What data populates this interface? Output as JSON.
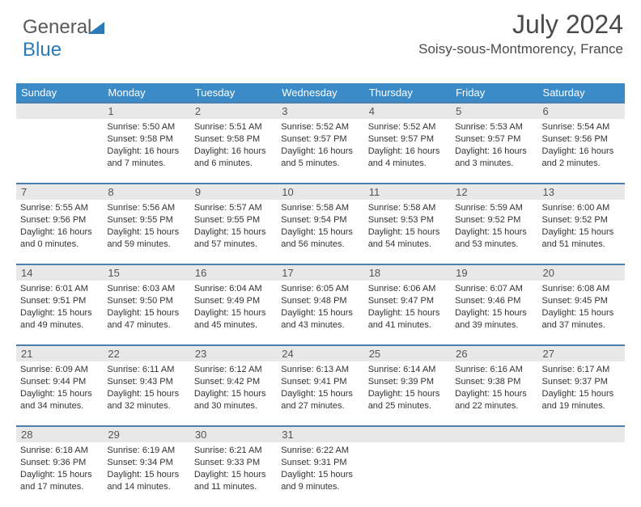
{
  "logo": {
    "word1": "General",
    "word2": "Blue"
  },
  "title": "July 2024",
  "location": "Soisy-sous-Montmorency, France",
  "colors": {
    "header_bg": "#3b8bc8",
    "header_text": "#ffffff",
    "daynum_bg": "#e8e8e8",
    "border": "#4a7fb0",
    "text": "#333333",
    "title_color": "#4a4a4a",
    "logo_gray": "#58595b",
    "logo_blue": "#2a7ab8"
  },
  "weekdays": [
    "Sunday",
    "Monday",
    "Tuesday",
    "Wednesday",
    "Thursday",
    "Friday",
    "Saturday"
  ],
  "weeks": [
    {
      "nums": [
        "",
        "1",
        "2",
        "3",
        "4",
        "5",
        "6"
      ],
      "cells": [
        null,
        {
          "sunrise": "Sunrise: 5:50 AM",
          "sunset": "Sunset: 9:58 PM",
          "daylight": "Daylight: 16 hours and 7 minutes."
        },
        {
          "sunrise": "Sunrise: 5:51 AM",
          "sunset": "Sunset: 9:58 PM",
          "daylight": "Daylight: 16 hours and 6 minutes."
        },
        {
          "sunrise": "Sunrise: 5:52 AM",
          "sunset": "Sunset: 9:57 PM",
          "daylight": "Daylight: 16 hours and 5 minutes."
        },
        {
          "sunrise": "Sunrise: 5:52 AM",
          "sunset": "Sunset: 9:57 PM",
          "daylight": "Daylight: 16 hours and 4 minutes."
        },
        {
          "sunrise": "Sunrise: 5:53 AM",
          "sunset": "Sunset: 9:57 PM",
          "daylight": "Daylight: 16 hours and 3 minutes."
        },
        {
          "sunrise": "Sunrise: 5:54 AM",
          "sunset": "Sunset: 9:56 PM",
          "daylight": "Daylight: 16 hours and 2 minutes."
        }
      ]
    },
    {
      "nums": [
        "7",
        "8",
        "9",
        "10",
        "11",
        "12",
        "13"
      ],
      "cells": [
        {
          "sunrise": "Sunrise: 5:55 AM",
          "sunset": "Sunset: 9:56 PM",
          "daylight": "Daylight: 16 hours and 0 minutes."
        },
        {
          "sunrise": "Sunrise: 5:56 AM",
          "sunset": "Sunset: 9:55 PM",
          "daylight": "Daylight: 15 hours and 59 minutes."
        },
        {
          "sunrise": "Sunrise: 5:57 AM",
          "sunset": "Sunset: 9:55 PM",
          "daylight": "Daylight: 15 hours and 57 minutes."
        },
        {
          "sunrise": "Sunrise: 5:58 AM",
          "sunset": "Sunset: 9:54 PM",
          "daylight": "Daylight: 15 hours and 56 minutes."
        },
        {
          "sunrise": "Sunrise: 5:58 AM",
          "sunset": "Sunset: 9:53 PM",
          "daylight": "Daylight: 15 hours and 54 minutes."
        },
        {
          "sunrise": "Sunrise: 5:59 AM",
          "sunset": "Sunset: 9:52 PM",
          "daylight": "Daylight: 15 hours and 53 minutes."
        },
        {
          "sunrise": "Sunrise: 6:00 AM",
          "sunset": "Sunset: 9:52 PM",
          "daylight": "Daylight: 15 hours and 51 minutes."
        }
      ]
    },
    {
      "nums": [
        "14",
        "15",
        "16",
        "17",
        "18",
        "19",
        "20"
      ],
      "cells": [
        {
          "sunrise": "Sunrise: 6:01 AM",
          "sunset": "Sunset: 9:51 PM",
          "daylight": "Daylight: 15 hours and 49 minutes."
        },
        {
          "sunrise": "Sunrise: 6:03 AM",
          "sunset": "Sunset: 9:50 PM",
          "daylight": "Daylight: 15 hours and 47 minutes."
        },
        {
          "sunrise": "Sunrise: 6:04 AM",
          "sunset": "Sunset: 9:49 PM",
          "daylight": "Daylight: 15 hours and 45 minutes."
        },
        {
          "sunrise": "Sunrise: 6:05 AM",
          "sunset": "Sunset: 9:48 PM",
          "daylight": "Daylight: 15 hours and 43 minutes."
        },
        {
          "sunrise": "Sunrise: 6:06 AM",
          "sunset": "Sunset: 9:47 PM",
          "daylight": "Daylight: 15 hours and 41 minutes."
        },
        {
          "sunrise": "Sunrise: 6:07 AM",
          "sunset": "Sunset: 9:46 PM",
          "daylight": "Daylight: 15 hours and 39 minutes."
        },
        {
          "sunrise": "Sunrise: 6:08 AM",
          "sunset": "Sunset: 9:45 PM",
          "daylight": "Daylight: 15 hours and 37 minutes."
        }
      ]
    },
    {
      "nums": [
        "21",
        "22",
        "23",
        "24",
        "25",
        "26",
        "27"
      ],
      "cells": [
        {
          "sunrise": "Sunrise: 6:09 AM",
          "sunset": "Sunset: 9:44 PM",
          "daylight": "Daylight: 15 hours and 34 minutes."
        },
        {
          "sunrise": "Sunrise: 6:11 AM",
          "sunset": "Sunset: 9:43 PM",
          "daylight": "Daylight: 15 hours and 32 minutes."
        },
        {
          "sunrise": "Sunrise: 6:12 AM",
          "sunset": "Sunset: 9:42 PM",
          "daylight": "Daylight: 15 hours and 30 minutes."
        },
        {
          "sunrise": "Sunrise: 6:13 AM",
          "sunset": "Sunset: 9:41 PM",
          "daylight": "Daylight: 15 hours and 27 minutes."
        },
        {
          "sunrise": "Sunrise: 6:14 AM",
          "sunset": "Sunset: 9:39 PM",
          "daylight": "Daylight: 15 hours and 25 minutes."
        },
        {
          "sunrise": "Sunrise: 6:16 AM",
          "sunset": "Sunset: 9:38 PM",
          "daylight": "Daylight: 15 hours and 22 minutes."
        },
        {
          "sunrise": "Sunrise: 6:17 AM",
          "sunset": "Sunset: 9:37 PM",
          "daylight": "Daylight: 15 hours and 19 minutes."
        }
      ]
    },
    {
      "nums": [
        "28",
        "29",
        "30",
        "31",
        "",
        "",
        ""
      ],
      "cells": [
        {
          "sunrise": "Sunrise: 6:18 AM",
          "sunset": "Sunset: 9:36 PM",
          "daylight": "Daylight: 15 hours and 17 minutes."
        },
        {
          "sunrise": "Sunrise: 6:19 AM",
          "sunset": "Sunset: 9:34 PM",
          "daylight": "Daylight: 15 hours and 14 minutes."
        },
        {
          "sunrise": "Sunrise: 6:21 AM",
          "sunset": "Sunset: 9:33 PM",
          "daylight": "Daylight: 15 hours and 11 minutes."
        },
        {
          "sunrise": "Sunrise: 6:22 AM",
          "sunset": "Sunset: 9:31 PM",
          "daylight": "Daylight: 15 hours and 9 minutes."
        },
        null,
        null,
        null
      ]
    }
  ]
}
